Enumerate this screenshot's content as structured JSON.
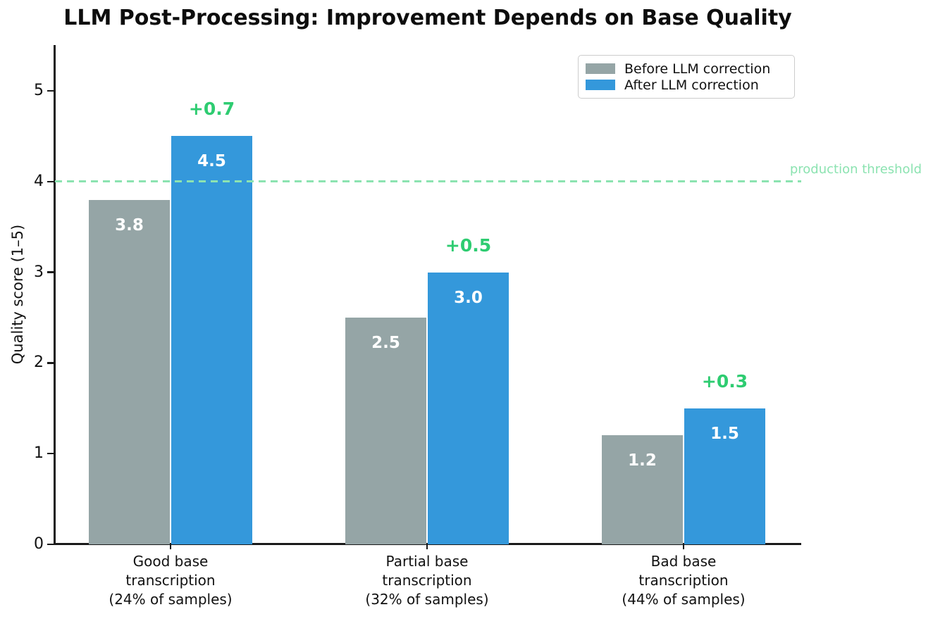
{
  "chart_data": {
    "type": "bar",
    "title": "LLM Post-Processing: Improvement Depends on Base Quality",
    "ylabel": "Quality score (1–5)",
    "ylim": [
      0,
      5.5
    ],
    "yticks": [
      0,
      1,
      2,
      3,
      4,
      5
    ],
    "grid": false,
    "categories": [
      "Good base\ntranscription\n(24% of samples)",
      "Partial base\ntranscription\n(32% of samples)",
      "Bad base\ntranscription\n(44% of samples)"
    ],
    "series": [
      {
        "name": "Before LLM correction",
        "values": [
          3.8,
          2.5,
          1.2
        ],
        "color": "#95a5a6"
      },
      {
        "name": "After LLM correction",
        "values": [
          4.5,
          3.0,
          1.5
        ],
        "color": "#3498db"
      }
    ],
    "value_labels": [
      [
        "3.8",
        "2.5",
        "1.2"
      ],
      [
        "4.5",
        "3.0",
        "1.5"
      ]
    ],
    "delta_labels": [
      "+0.7",
      "+0.5",
      "+0.3"
    ],
    "delta_color": "#2ecc71",
    "threshold": {
      "value": 4,
      "label": "production threshold",
      "color": "#8ce3b1"
    },
    "legend": {
      "position": "upper right"
    }
  }
}
